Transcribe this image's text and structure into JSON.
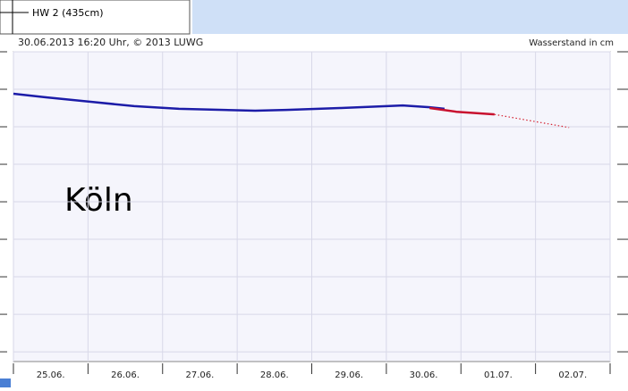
{
  "legend_label": "HW 2 (435cm)",
  "chart_data": {
    "type": "line",
    "title": "30.06.2013 16:20 Uhr, © 2013 LUWG",
    "ylabel": "Wasserstand in cm",
    "annotation": "Köln",
    "categories": [
      "25.06.",
      "26.06.",
      "27.06.",
      "28.06.",
      "29.06.",
      "30.06.",
      "01.07.",
      "02.07."
    ],
    "xlim": [
      0,
      8
    ],
    "xticks": [
      0,
      1,
      2,
      3,
      4,
      5,
      6,
      7,
      8
    ],
    "ylim": [
      -0.26,
      8
    ],
    "yticks": [
      0,
      1,
      2,
      3,
      4,
      5,
      6,
      7,
      8
    ],
    "grid": true,
    "series": [
      {
        "color": "#1c1ca8",
        "dashed": false,
        "x": [
          0,
          0.42,
          1.02,
          1.62,
          2.22,
          2.82,
          3.24,
          3.66,
          4.38,
          5.22,
          5.58,
          5.78
        ],
        "values": [
          6.88,
          6.79,
          6.67,
          6.55,
          6.48,
          6.45,
          6.43,
          6.45,
          6.5,
          6.57,
          6.52,
          6.48
        ]
      },
      {
        "color": "#c8102e",
        "dashed": false,
        "x": [
          5.58,
          5.94,
          6.45
        ],
        "values": [
          6.5,
          6.4,
          6.33
        ]
      },
      {
        "color": "#d42030",
        "dashed": true,
        "x": [
          6.45,
          7.45
        ],
        "values": [
          6.33,
          5.98
        ]
      }
    ]
  }
}
